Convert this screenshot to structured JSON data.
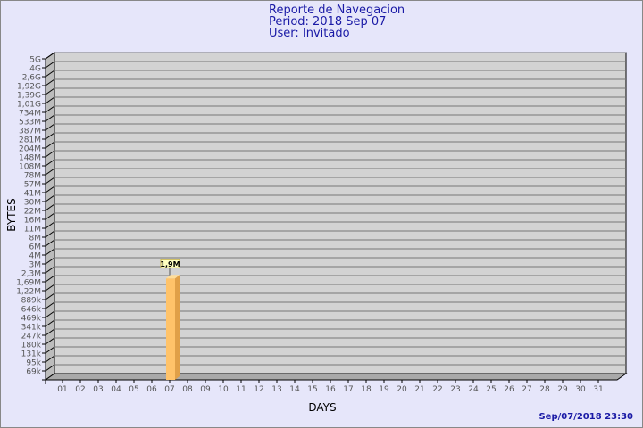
{
  "header": {
    "title": "Reporte de Navegacion",
    "period": "Period: 2018 Sep 07",
    "user": "User: Invitado"
  },
  "footer": {
    "timestamp": "Sep/07/2018 23:30"
  },
  "colors": {
    "background": "#e6e6fa",
    "plot": "#d3d3d3",
    "bar": "#ffc36a",
    "bar_side": "#e0a048",
    "title": "#1a1aa6"
  },
  "chart_data": {
    "type": "bar",
    "xlabel": "DAYS",
    "ylabel": "BYTES",
    "y_scale": "log",
    "ytick_labels": [
      "5G",
      "4G",
      "2,6G",
      "1,92G",
      "1,39G",
      "1,01G",
      "734M",
      "533M",
      "387M",
      "281M",
      "204M",
      "148M",
      "108M",
      "78M",
      "57M",
      "41M",
      "30M",
      "22M",
      "16M",
      "11M",
      "8M",
      "6M",
      "4M",
      "3M",
      "2,3M",
      "1,69M",
      "1,22M",
      "889k",
      "646k",
      "469k",
      "341k",
      "247k",
      "180k",
      "131k",
      "95k",
      "69k"
    ],
    "categories": [
      "01",
      "02",
      "03",
      "04",
      "05",
      "06",
      "07",
      "08",
      "09",
      "10",
      "11",
      "12",
      "13",
      "14",
      "15",
      "16",
      "17",
      "18",
      "19",
      "20",
      "21",
      "22",
      "23",
      "24",
      "25",
      "26",
      "27",
      "28",
      "29",
      "30",
      "31"
    ],
    "values": [
      0,
      0,
      0,
      0,
      0,
      0,
      1.9,
      0,
      0,
      0,
      0,
      0,
      0,
      0,
      0,
      0,
      0,
      0,
      0,
      0,
      0,
      0,
      0,
      0,
      0,
      0,
      0,
      0,
      0,
      0,
      0
    ],
    "value_unit": "M",
    "data_labels": {
      "07": "1,9M"
    },
    "grid": true
  }
}
